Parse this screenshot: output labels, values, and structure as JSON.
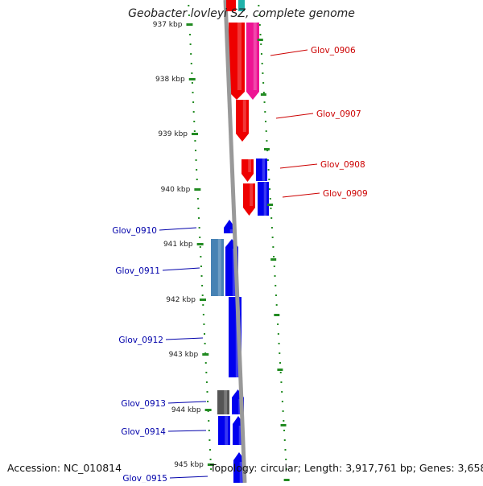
{
  "title": "Geobacter lovleyi SZ, complete genome",
  "footer": {
    "accession": "Accession: NC_010814",
    "summary": "Topology: circular; Length: 3,917,761 bp; Genes: 3,658"
  },
  "ticks": [
    "937 kbp",
    "938 kbp",
    "939 kbp",
    "940 kbp",
    "941 kbp",
    "942 kbp",
    "943 kbp",
    "944 kbp",
    "945 kbp"
  ],
  "genes": [
    {
      "name": "Glov_0906",
      "color": "#cc0000"
    },
    {
      "name": "Glov_0907",
      "color": "#cc0000"
    },
    {
      "name": "Glov_0908",
      "color": "#cc0000"
    },
    {
      "name": "Glov_0909",
      "color": "#cc0000"
    },
    {
      "name": "Glov_0910",
      "color": "#0000aa"
    },
    {
      "name": "Glov_0911",
      "color": "#0000aa"
    },
    {
      "name": "Glov_0912",
      "color": "#0000aa"
    },
    {
      "name": "Glov_0913",
      "color": "#0000aa"
    },
    {
      "name": "Glov_0914",
      "color": "#0000aa"
    },
    {
      "name": "Glov_0915",
      "color": "#0000aa"
    }
  ],
  "feature_colors": {
    "red": "#ee0000",
    "magenta": "#ee1493",
    "blue": "#0000ee",
    "steelblue": "#4682b4",
    "gray": "#555555",
    "backbone": "#999999",
    "tick": "#228b22"
  }
}
